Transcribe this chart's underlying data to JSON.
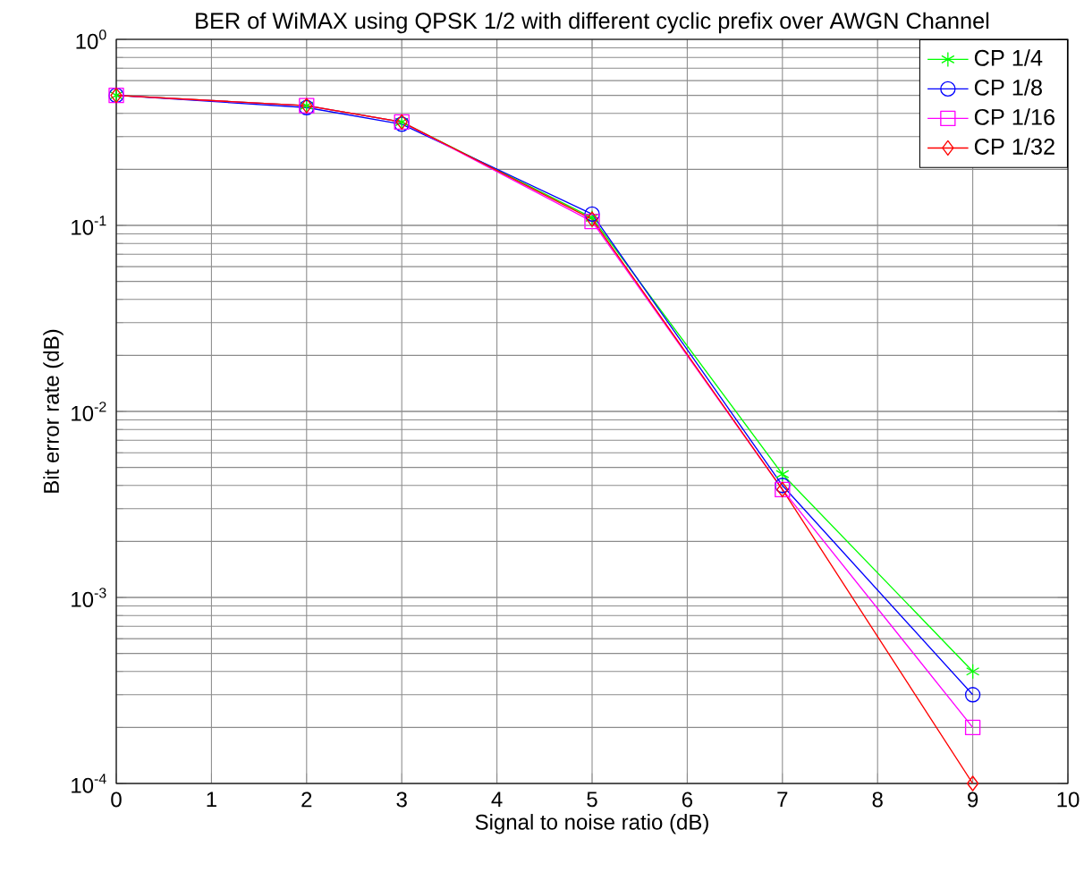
{
  "chart_data": {
    "type": "line",
    "title": "BER of WiMAX using QPSK 1/2 with different cyclic prefix over AWGN Channel",
    "xlabel": "Signal to noise ratio (dB)",
    "ylabel": "Bit error rate (dB)",
    "x": [
      0,
      2,
      3,
      5,
      7,
      9
    ],
    "series": [
      {
        "name": "CP 1/4",
        "color": "#00ff00",
        "marker": "cross",
        "values": [
          0.5,
          0.44,
          0.36,
          0.11,
          0.0046,
          0.0004
        ]
      },
      {
        "name": "CP 1/8",
        "color": "#0000ff",
        "marker": "circle",
        "values": [
          0.5,
          0.43,
          0.35,
          0.115,
          0.004,
          0.0003
        ]
      },
      {
        "name": "CP 1/16",
        "color": "#ff00ff",
        "marker": "square",
        "values": [
          0.5,
          0.44,
          0.36,
          0.105,
          0.0038,
          0.0002
        ]
      },
      {
        "name": "CP 1/32",
        "color": "#ff0000",
        "marker": "diamond",
        "values": [
          0.5,
          0.44,
          0.36,
          0.108,
          0.0038,
          0.0001
        ]
      }
    ],
    "log": "y",
    "xlim": [
      0,
      10
    ],
    "ylim": [
      0.0001,
      1
    ],
    "xticks": [
      0,
      1,
      2,
      3,
      4,
      5,
      6,
      7,
      8,
      9,
      10
    ],
    "yticks": [
      {
        "value": 0.0001,
        "label": "10$^{-4}$"
      },
      {
        "value": 0.001,
        "label": "10$^{-3}$"
      },
      {
        "value": 0.01,
        "label": "10$^{-2}$"
      },
      {
        "value": 0.1,
        "label": "10$^{-1}$"
      },
      {
        "value": 1,
        "label": "10$^{0}$"
      }
    ],
    "grid": true,
    "legend": "top right",
    "line_style": "solid"
  }
}
